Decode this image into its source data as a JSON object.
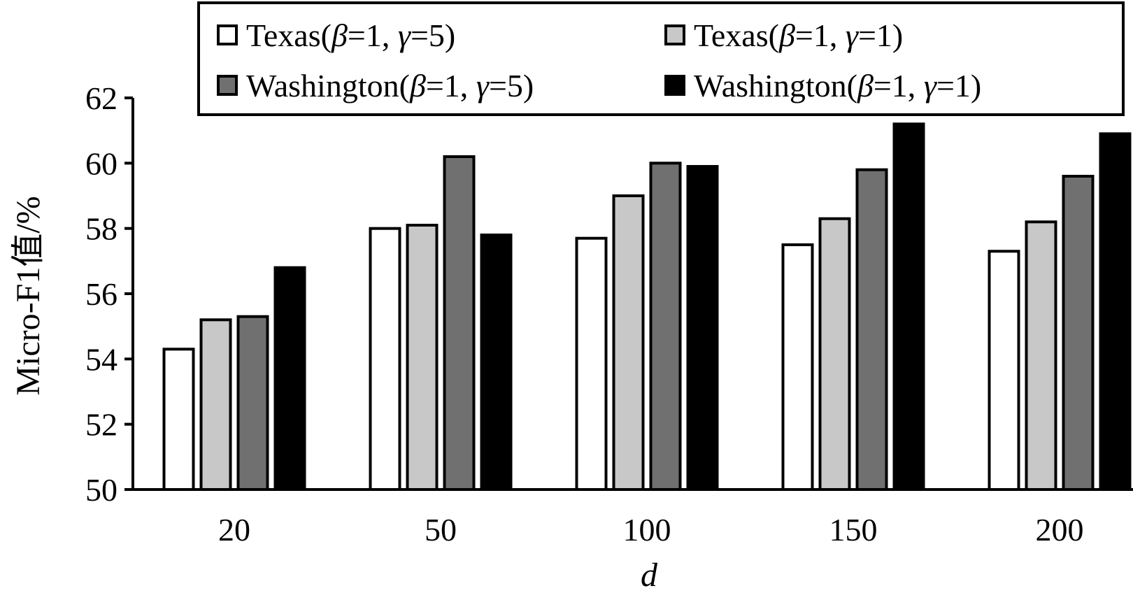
{
  "chart_data": {
    "type": "bar",
    "categories": [
      "20",
      "50",
      "100",
      "150",
      "200"
    ],
    "series": [
      {
        "name": "Texas(β=1, γ=5)",
        "name_parts": [
          "Texas(",
          "β",
          "=1, ",
          "γ",
          "=5)"
        ],
        "color": "#ffffff",
        "values": [
          54.3,
          58.0,
          57.7,
          57.5,
          57.3
        ]
      },
      {
        "name": "Texas(β=1, γ=1)",
        "name_parts": [
          "Texas(",
          "β",
          "=1, ",
          "γ",
          "=1)"
        ],
        "color": "#c8c8c8",
        "values": [
          55.2,
          58.1,
          59.0,
          58.3,
          58.2
        ]
      },
      {
        "name": "Washington(β=1, γ=5)",
        "name_parts": [
          "Washington(",
          "β",
          "=1, ",
          "γ",
          "=5)"
        ],
        "color": "#707070",
        "values": [
          55.3,
          60.2,
          60.0,
          59.8,
          59.6
        ]
      },
      {
        "name": "Washington(β=1, γ=1)",
        "name_parts": [
          "Washington(",
          "β",
          "=1, ",
          "γ",
          "=1)"
        ],
        "color": "#000000",
        "values": [
          56.8,
          57.8,
          59.9,
          61.2,
          60.9
        ]
      }
    ],
    "xlabel": "d",
    "ylabel": "Micro-F1值/%",
    "ylim": [
      50,
      62
    ],
    "yticks": [
      "50",
      "52",
      "54",
      "56",
      "58",
      "60",
      "62"
    ],
    "grid": false,
    "legend_position": "top"
  }
}
